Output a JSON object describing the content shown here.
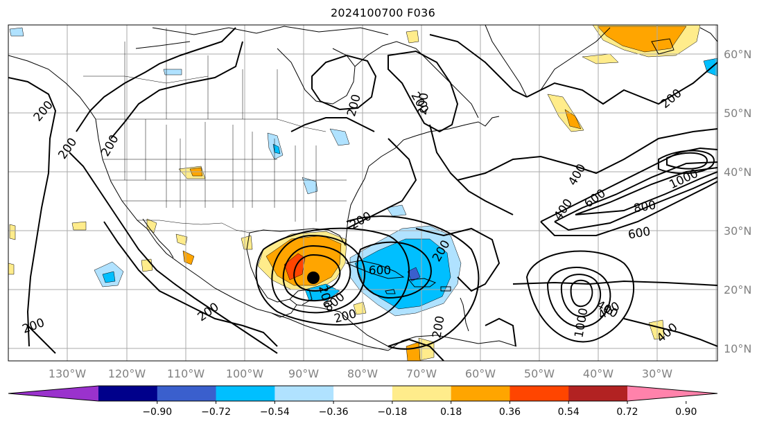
{
  "title": "2024100700 F036",
  "map": {
    "lon_labels": [
      "130°W",
      "120°W",
      "110°W",
      "100°W",
      "90°W",
      "80°W",
      "70°W",
      "60°W",
      "50°W",
      "40°W",
      "30°W"
    ],
    "lat_labels": [
      "60°N",
      "50°N",
      "40°N",
      "30°N",
      "20°N",
      "10°N"
    ],
    "grid_color": "#aaaaaa",
    "coastline_color": "#000000",
    "storm_marker": "hurricane-center-dot"
  },
  "contour_labels": [
    {
      "text": "200",
      "rot": -50
    },
    {
      "text": "200",
      "rot": -55
    },
    {
      "text": "200",
      "rot": -60
    },
    {
      "text": "200",
      "rot": -75
    },
    {
      "text": "200",
      "rot": 60
    },
    {
      "text": "200",
      "rot": -40
    },
    {
      "text": "200",
      "rot": -35
    },
    {
      "text": "200",
      "rot": -20
    },
    {
      "text": "200",
      "rot": -30
    },
    {
      "text": "200",
      "rot": -15
    },
    {
      "text": "200",
      "rot": -60
    },
    {
      "text": "200",
      "rot": -80
    },
    {
      "text": "200",
      "rot": 75
    },
    {
      "text": "400",
      "rot": -60
    },
    {
      "text": "600",
      "rot": -35
    },
    {
      "text": "800",
      "rot": -10
    },
    {
      "text": "1000",
      "rot": -25
    },
    {
      "text": "400",
      "rot": -55
    },
    {
      "text": "400",
      "rot": -40
    },
    {
      "text": "400",
      "rot": 30
    },
    {
      "text": "600",
      "rot": -10
    },
    {
      "text": "1000",
      "rot": -80
    },
    {
      "text": "600",
      "rot": 0
    },
    {
      "text": "800",
      "rot": -40
    },
    {
      "text": "400",
      "rot": -30
    },
    {
      "text": "200",
      "rot": -85
    }
  ],
  "colorbar": {
    "colors": [
      "#9a32cd",
      "#00008b",
      "#3a5fcd",
      "#00bfff",
      "#b0e2ff",
      "#ffffff",
      "#ffec8b",
      "#ffa500",
      "#ff4500",
      "#b22222",
      "#ff82ab"
    ],
    "tick_labels": [
      "−0.90",
      "−0.72",
      "−0.54",
      "−0.36",
      "−0.18",
      "0.18",
      "0.36",
      "0.54",
      "0.72",
      "0.90"
    ]
  },
  "palette": {
    "blue_light": "#b0e2ff",
    "blue": "#00bfff",
    "blue_mid": "#3a5fcd",
    "yellow": "#ffec8b",
    "orange": "#ffa500",
    "red": "#ff4500",
    "darkred": "#b22222"
  }
}
